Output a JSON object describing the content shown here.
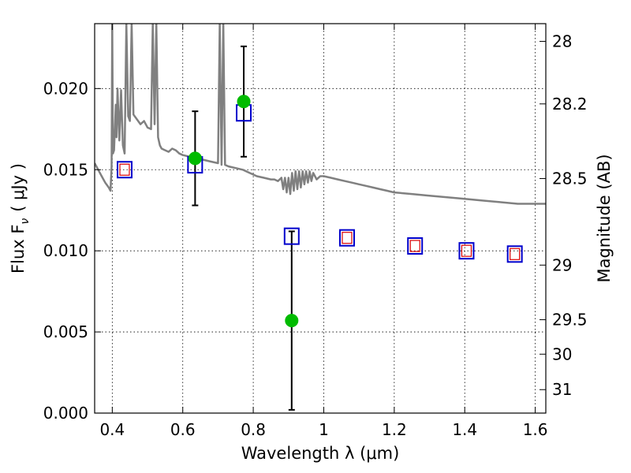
{
  "chart_data": {
    "type": "scatter",
    "xlabel": "Wavelength  λ (μm)",
    "ylabel": "Flux  F",
    "ylabel_subscript": "ν",
    "ylabel_unit": "( μJy )",
    "y2label": "Magnitude (AB)",
    "xlim": [
      0.35,
      1.63
    ],
    "ylim": [
      0.0,
      0.024
    ],
    "grid": true,
    "x_ticks": [
      0.4,
      0.6,
      0.8,
      1.0,
      1.2,
      1.4,
      1.6
    ],
    "x_tick_labels": [
      "0.4",
      "0.6",
      "0.8",
      "1",
      "1.2",
      "1.4",
      "1.6"
    ],
    "y_ticks": [
      0.0,
      0.005,
      0.01,
      0.015,
      0.02
    ],
    "y_tick_labels": [
      "0.000",
      "0.005",
      "0.010",
      "0.015",
      "0.020"
    ],
    "y2_ticks": [
      "28",
      "28.2",
      "28.5",
      "29",
      "29.5",
      "30",
      "31"
    ],
    "colors": {
      "spectrum": "#808080",
      "observed": "#00bb00",
      "model_outer": "#0000cc",
      "model_inner": "#dd0000",
      "errorbar": "#000000"
    },
    "series": [
      {
        "kind": "spectrum_line",
        "points": [
          [
            0.35,
            0.0154
          ],
          [
            0.36,
            0.015
          ],
          [
            0.37,
            0.0146
          ],
          [
            0.38,
            0.0142
          ],
          [
            0.39,
            0.0139
          ],
          [
            0.395,
            0.0137
          ],
          [
            0.398,
            0.0152
          ],
          [
            0.4,
            0.024
          ],
          [
            0.402,
            0.016
          ],
          [
            0.405,
            0.0162
          ],
          [
            0.41,
            0.019
          ],
          [
            0.412,
            0.017
          ],
          [
            0.415,
            0.02
          ],
          [
            0.42,
            0.0168
          ],
          [
            0.425,
            0.0199
          ],
          [
            0.43,
            0.0165
          ],
          [
            0.435,
            0.016
          ],
          [
            0.44,
            0.024
          ],
          [
            0.445,
            0.0183
          ],
          [
            0.45,
            0.018
          ],
          [
            0.455,
            0.024
          ],
          [
            0.46,
            0.0184
          ],
          [
            0.47,
            0.0181
          ],
          [
            0.48,
            0.0178
          ],
          [
            0.49,
            0.018
          ],
          [
            0.5,
            0.0176
          ],
          [
            0.51,
            0.0175
          ],
          [
            0.515,
            0.024
          ],
          [
            0.52,
            0.0178
          ],
          [
            0.525,
            0.024
          ],
          [
            0.53,
            0.017
          ],
          [
            0.535,
            0.0165
          ],
          [
            0.54,
            0.0163
          ],
          [
            0.55,
            0.0162
          ],
          [
            0.56,
            0.0161
          ],
          [
            0.57,
            0.0163
          ],
          [
            0.58,
            0.0162
          ],
          [
            0.59,
            0.016
          ],
          [
            0.6,
            0.0159
          ],
          [
            0.62,
            0.0158
          ],
          [
            0.64,
            0.0157
          ],
          [
            0.66,
            0.0156
          ],
          [
            0.68,
            0.0155
          ],
          [
            0.7,
            0.0154
          ],
          [
            0.705,
            0.024
          ],
          [
            0.71,
            0.0153
          ],
          [
            0.715,
            0.024
          ],
          [
            0.72,
            0.0153
          ],
          [
            0.73,
            0.0152
          ],
          [
            0.75,
            0.0151
          ],
          [
            0.77,
            0.015
          ],
          [
            0.79,
            0.0148
          ],
          [
            0.81,
            0.0146
          ],
          [
            0.83,
            0.0145
          ],
          [
            0.85,
            0.0144
          ],
          [
            0.86,
            0.0144
          ],
          [
            0.87,
            0.0143
          ],
          [
            0.88,
            0.0145
          ],
          [
            0.885,
            0.0138
          ],
          [
            0.89,
            0.0145
          ],
          [
            0.895,
            0.0136
          ],
          [
            0.9,
            0.0145
          ],
          [
            0.905,
            0.0135
          ],
          [
            0.91,
            0.0148
          ],
          [
            0.915,
            0.0137
          ],
          [
            0.92,
            0.0149
          ],
          [
            0.925,
            0.0138
          ],
          [
            0.93,
            0.0149
          ],
          [
            0.935,
            0.0139
          ],
          [
            0.94,
            0.0149
          ],
          [
            0.945,
            0.0141
          ],
          [
            0.95,
            0.0149
          ],
          [
            0.955,
            0.0142
          ],
          [
            0.96,
            0.0149
          ],
          [
            0.965,
            0.0143
          ],
          [
            0.97,
            0.0148
          ],
          [
            0.98,
            0.0144
          ],
          [
            0.99,
            0.0146
          ],
          [
            1.0,
            0.0146
          ],
          [
            1.02,
            0.0145
          ],
          [
            1.04,
            0.0144
          ],
          [
            1.06,
            0.0143
          ],
          [
            1.08,
            0.0142
          ],
          [
            1.1,
            0.0141
          ],
          [
            1.12,
            0.014
          ],
          [
            1.14,
            0.0139
          ],
          [
            1.16,
            0.0138
          ],
          [
            1.18,
            0.0137
          ],
          [
            1.2,
            0.0136
          ],
          [
            1.25,
            0.0135
          ],
          [
            1.3,
            0.0134
          ],
          [
            1.35,
            0.0133
          ],
          [
            1.4,
            0.0132
          ],
          [
            1.45,
            0.0131
          ],
          [
            1.5,
            0.013
          ],
          [
            1.55,
            0.0129
          ],
          [
            1.6,
            0.0129
          ],
          [
            1.63,
            0.0129
          ]
        ]
      },
      {
        "kind": "observed_points",
        "x": [
          0.635,
          0.773,
          0.909
        ],
        "y": [
          0.0157,
          0.0192,
          0.0057
        ],
        "err": [
          0.0029,
          0.0034,
          0.0055
        ]
      },
      {
        "kind": "model_squares",
        "x": [
          0.435,
          0.635,
          0.773,
          0.909,
          1.066,
          1.259,
          1.405,
          1.542
        ],
        "y": [
          0.015,
          0.0153,
          0.0185,
          0.0109,
          0.0108,
          0.0103,
          0.01,
          0.0098
        ],
        "inner": [
          true,
          false,
          false,
          false,
          true,
          true,
          true,
          true
        ]
      }
    ]
  }
}
